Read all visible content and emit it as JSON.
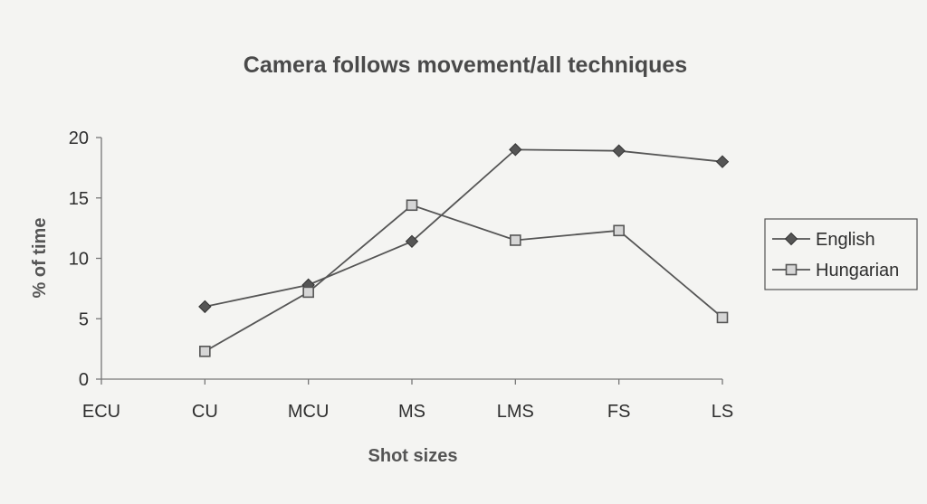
{
  "chart_data": {
    "type": "line",
    "title": "Camera follows movement/all techniques",
    "xlabel": "Shot sizes",
    "ylabel": "% of time",
    "categories": [
      "ECU",
      "CU",
      "MCU",
      "MS",
      "LMS",
      "FS",
      "LS"
    ],
    "ylim": [
      0,
      20
    ],
    "yticks": [
      "0",
      "5",
      "10",
      "15",
      "20"
    ],
    "grid": false,
    "legend_position": "right",
    "series": [
      {
        "name": "English",
        "marker": "diamond",
        "color": "#555555",
        "values": [
          null,
          6.0,
          7.8,
          11.4,
          19.0,
          18.9,
          18.0
        ]
      },
      {
        "name": "Hungarian",
        "marker": "square",
        "color": "#555555",
        "values": [
          null,
          2.3,
          7.2,
          14.4,
          11.5,
          12.3,
          5.1
        ]
      }
    ]
  }
}
